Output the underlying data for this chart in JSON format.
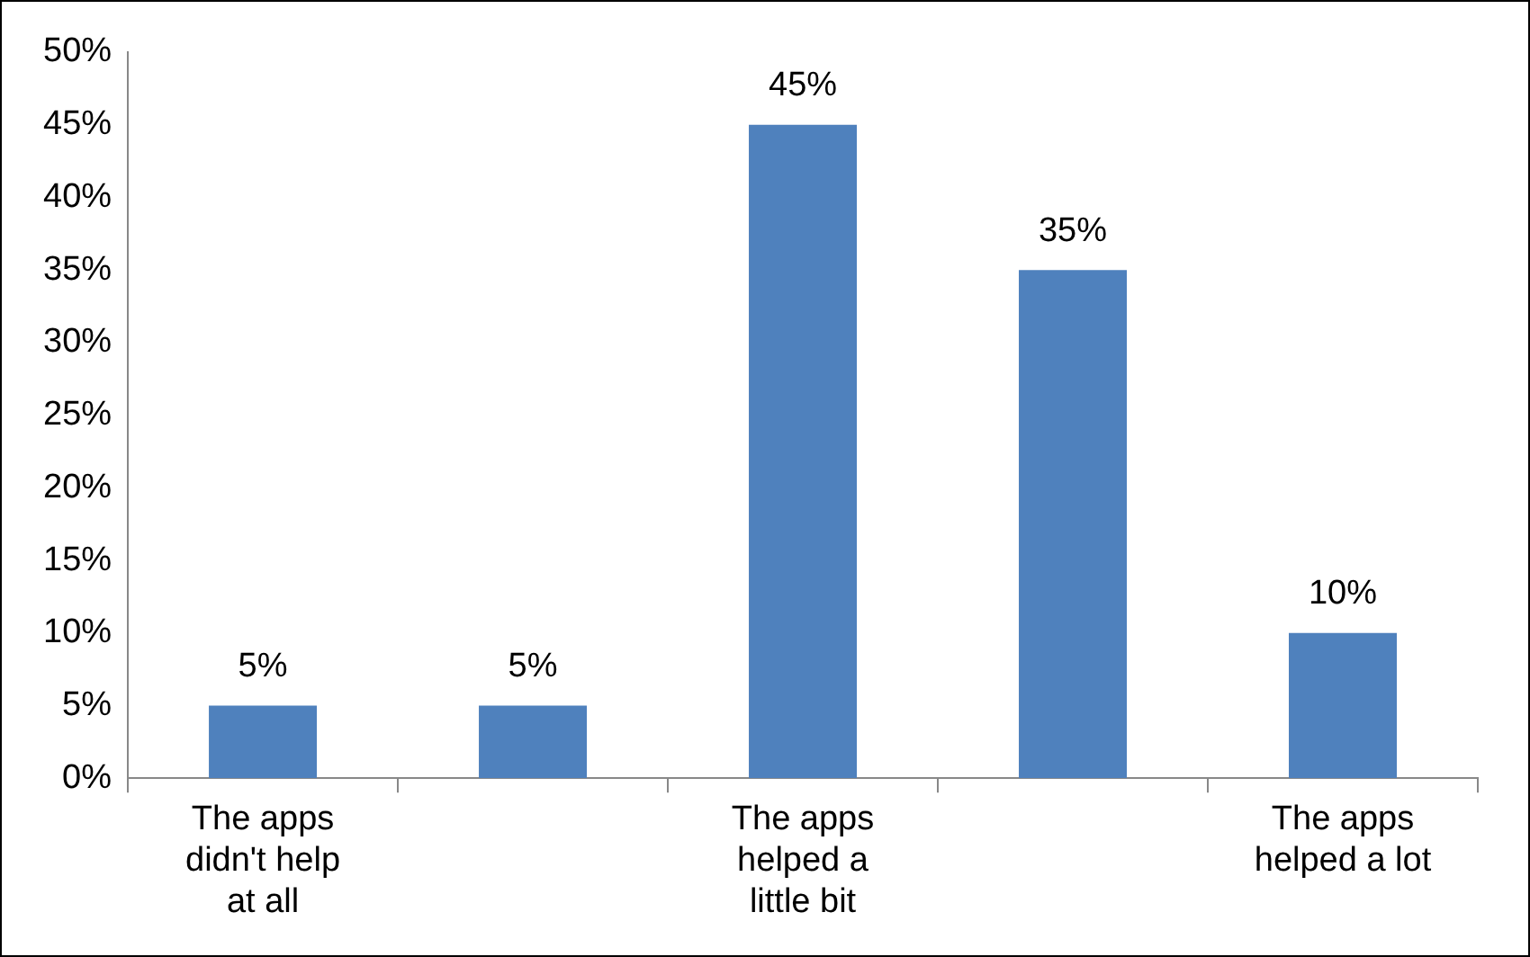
{
  "chart_data": {
    "type": "bar",
    "categories": [
      "The apps didn't help at all",
      null,
      "The apps helped a little bit",
      null,
      "The apps helped a lot"
    ],
    "values": [
      5,
      5,
      45,
      35,
      10
    ],
    "value_labels": [
      "5%",
      "5%",
      "45%",
      "35%",
      "10%"
    ],
    "color": "#4f81bd",
    "ylim": [
      0,
      50
    ],
    "yticks": [
      {
        "value": 0,
        "label": "0%"
      },
      {
        "value": 5,
        "label": "5%"
      },
      {
        "value": 10,
        "label": "10%"
      },
      {
        "value": 15,
        "label": "15%"
      },
      {
        "value": 20,
        "label": "20%"
      },
      {
        "value": 25,
        "label": "25%"
      },
      {
        "value": 30,
        "label": "30%"
      },
      {
        "value": 35,
        "label": "35%"
      },
      {
        "value": 40,
        "label": "40%"
      },
      {
        "value": 45,
        "label": "45%"
      },
      {
        "value": 50,
        "label": "50%"
      }
    ],
    "grid": false,
    "legend": false
  }
}
